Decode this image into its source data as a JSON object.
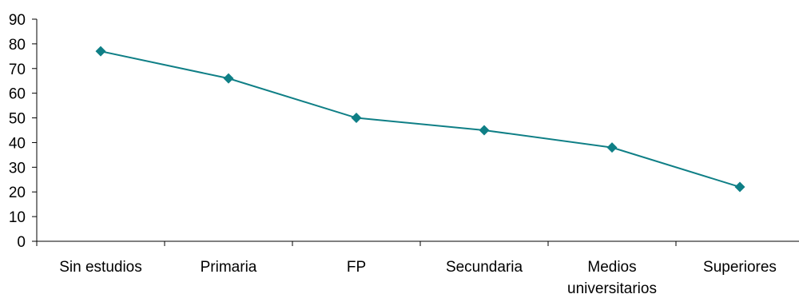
{
  "chart_data": {
    "type": "line",
    "title": "",
    "xlabel": "",
    "ylabel": "",
    "categories": [
      [
        "Sin estudios"
      ],
      [
        "Primaria"
      ],
      [
        "FP"
      ],
      [
        "Secundaria"
      ],
      [
        "Medios",
        "universitarios"
      ],
      [
        "Superiores"
      ]
    ],
    "series": [
      {
        "values": [
          77,
          66,
          50,
          45,
          38,
          22
        ]
      }
    ],
    "ylim": [
      0,
      90
    ],
    "yticks": [
      "0",
      "10",
      "20",
      "30",
      "40",
      "50",
      "60",
      "70",
      "80",
      "90"
    ],
    "grid": false,
    "legend": "none",
    "marker": "diamond",
    "colors": {
      "line": "#0f7f86",
      "marker": "#0f7f86",
      "axis": "#000000"
    }
  }
}
